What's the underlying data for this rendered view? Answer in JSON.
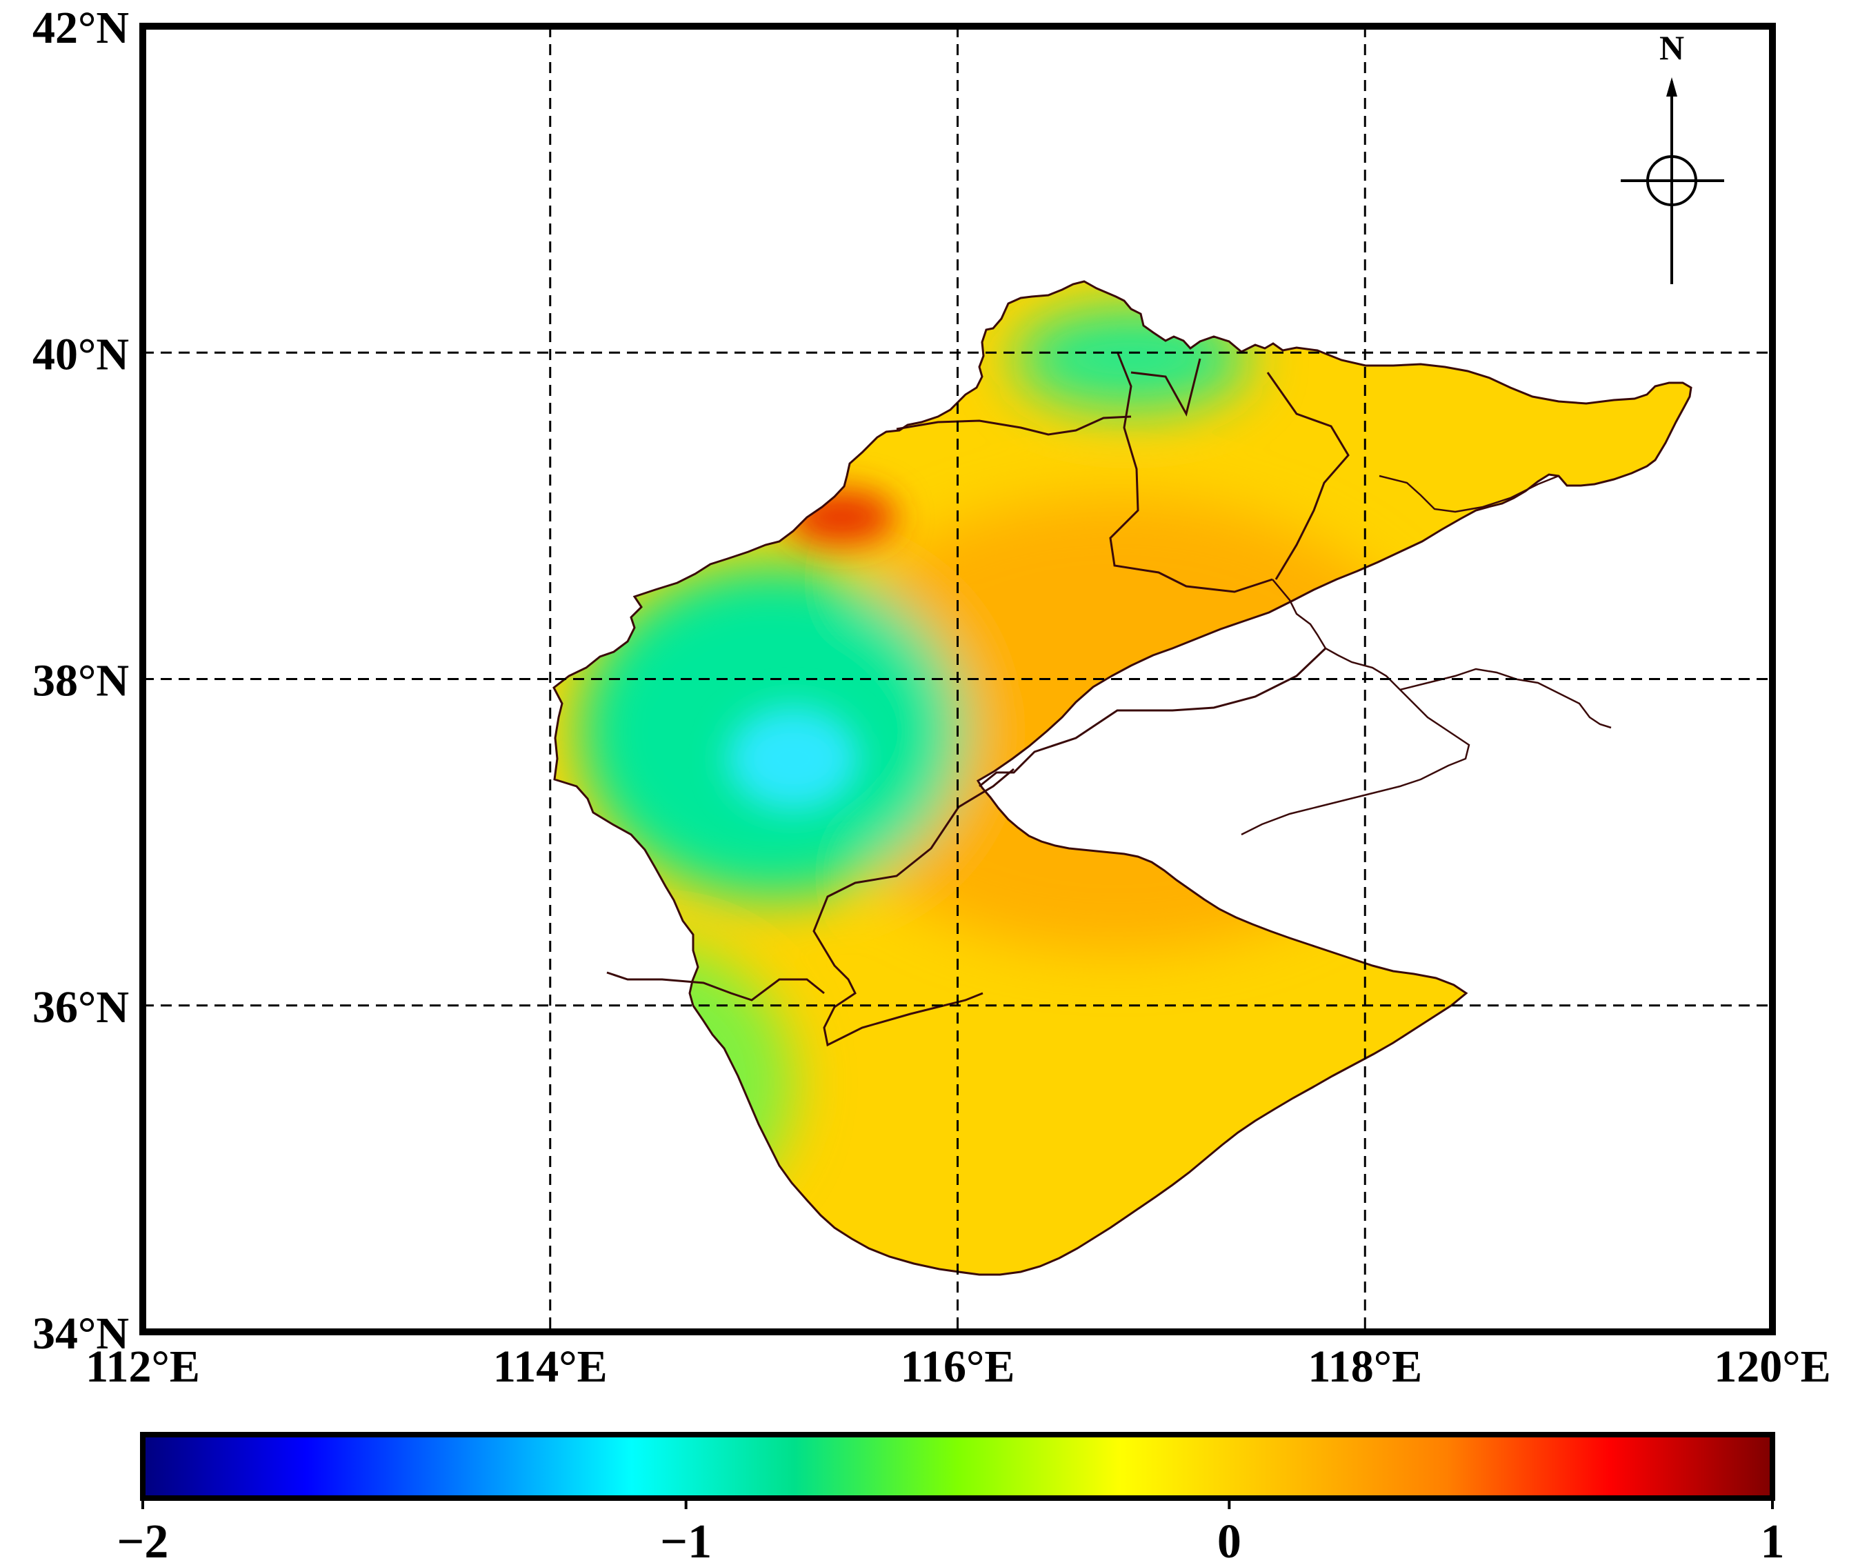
{
  "map": {
    "lon_range": [
      112,
      120
    ],
    "lat_range": [
      34,
      42
    ],
    "lon_ticks": [
      "112°E",
      "114°E",
      "116°E",
      "118°E",
      "120°E"
    ],
    "lat_ticks": [
      "34°N",
      "36°N",
      "38°N",
      "40°N",
      "42°N"
    ],
    "gridlines": "dashed",
    "north_arrow_label": "N"
  },
  "colorbar": {
    "range": [
      -2,
      1
    ],
    "tick_labels": [
      "−2",
      "−1",
      "0",
      "1"
    ],
    "colors": [
      "#00007f",
      "#0000ff",
      "#0080ff",
      "#00ffff",
      "#00e08a",
      "#80ff00",
      "#ffff00",
      "#ffc000",
      "#ff8000",
      "#ff0000",
      "#7f0000"
    ]
  },
  "field": {
    "background_color": "#ffd400",
    "features": [
      {
        "label": "low-center",
        "color": "#2ee8ff"
      },
      {
        "label": "negative-zone",
        "color": "#00e89a"
      },
      {
        "label": "north-negative",
        "color": "#26e88a"
      },
      {
        "label": "south-negative",
        "color": "#80f040"
      },
      {
        "label": "positive-zone",
        "color": "#ffb000"
      },
      {
        "label": "high-edge",
        "color": "#e83000"
      }
    ]
  }
}
